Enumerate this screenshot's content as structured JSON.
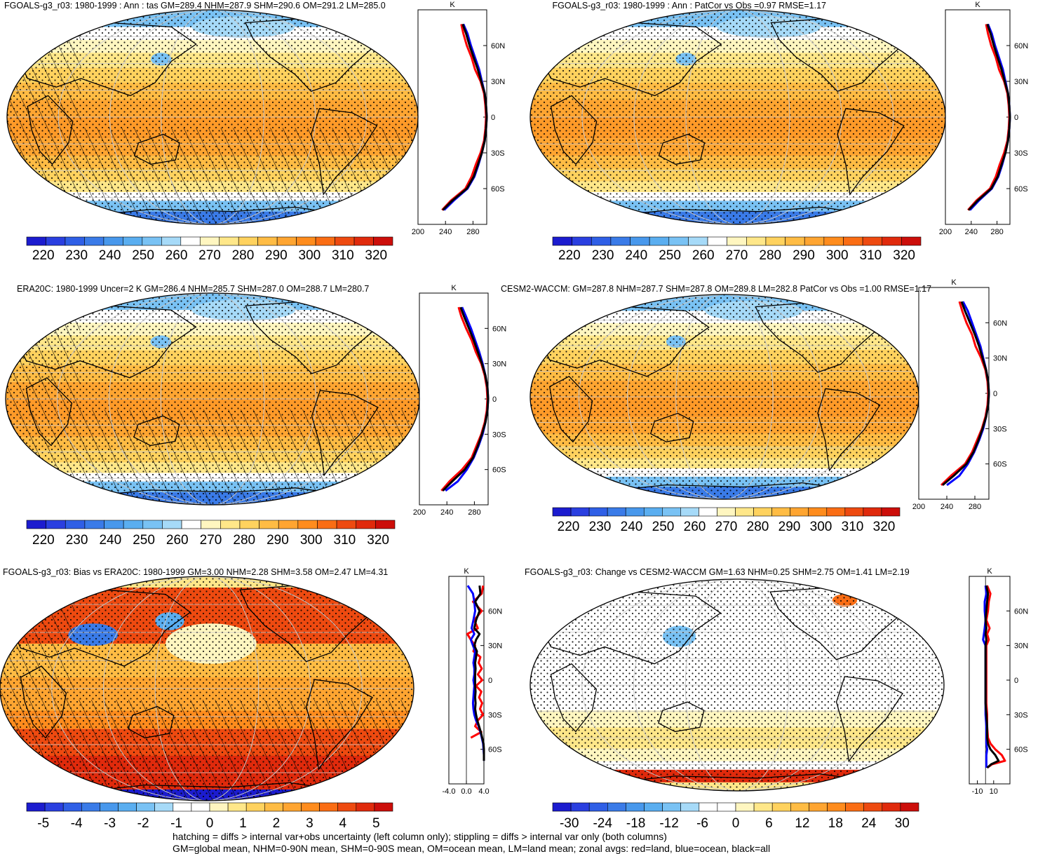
{
  "footer": {
    "line1": "hatching = diffs > internal var+obs uncertainty (left column only); stippling = diffs > internal var only (both columns)",
    "line2": "GM=global mean, NHM=0-90N mean, SHM=0-90S mean, OM=ocean mean, LM=land mean; zonal avgs: red=land, blue=ocean, black=all"
  },
  "colors": {
    "land_line": "#ff0000",
    "ocean_line": "#0000ff",
    "all_line": "#000000",
    "abs_scale": [
      "#1c1ccf",
      "#2a3fe0",
      "#2f5fe6",
      "#3a7be8",
      "#4898ec",
      "#5aaef0",
      "#79c2f4",
      "#a6daf8",
      "#ffffff",
      "#fff6c0",
      "#ffe789",
      "#ffd25e",
      "#ffbc44",
      "#ffa531",
      "#ff8c1d",
      "#fa6d14",
      "#ee4a10",
      "#e02a0c",
      "#cc0e0a"
    ],
    "diff_scale": [
      "#1c1ccf",
      "#2a3fe0",
      "#2f5fe6",
      "#3a7be8",
      "#4898ec",
      "#5aaef0",
      "#79c2f4",
      "#a6daf8",
      "#ffffff",
      "#ffffff",
      "#fff6c0",
      "#ffe789",
      "#ffd25e",
      "#ffbc44",
      "#ffa531",
      "#ff8c1d",
      "#fa6d14",
      "#ee4a10",
      "#e02a0c",
      "#cc0e0a"
    ]
  },
  "chart_data": [
    {
      "type": "heatmap",
      "title": "FGOALS-g3_r03: 1980-1999 : Ann : tas GM=289.4 NHM=287.9 SHM=290.6 OM=291.2 LM=285.0",
      "colorbar_ticks": [
        "220",
        "230",
        "240",
        "250",
        "260",
        "270",
        "280",
        "290",
        "300",
        "310",
        "320"
      ],
      "colorbar_range": [
        215,
        325
      ],
      "lat_labels": [
        "60N",
        "30N",
        "0",
        "30S",
        "60S"
      ],
      "zonal_unit": "K",
      "zonal_ticks": [
        "200",
        "240",
        "280"
      ],
      "zonal_xlim": [
        200,
        300
      ],
      "zonal_series": [
        {
          "role": "land",
          "lat": [
            78,
            70,
            60,
            50,
            40,
            30,
            20,
            10,
            0,
            -10,
            -20,
            -30,
            -40,
            -50,
            -60,
            -70,
            -78
          ],
          "values": [
            263,
            266,
            271,
            278,
            283,
            291,
            296,
            298,
            299,
            298,
            296,
            291,
            284,
            278,
            269,
            248,
            235
          ]
        },
        {
          "role": "ocean",
          "lat": [
            78,
            70,
            60,
            50,
            40,
            30,
            20,
            10,
            0,
            -10,
            -20,
            -30,
            -40,
            -50,
            -60,
            -70,
            -78
          ],
          "values": [
            266,
            272,
            277,
            283,
            289,
            293,
            297,
            299,
            300,
            299,
            297,
            293,
            288,
            282,
            272,
            252,
            238
          ]
        },
        {
          "role": "all",
          "lat": [
            78,
            70,
            60,
            50,
            40,
            30,
            20,
            10,
            0,
            -10,
            -20,
            -30,
            -40,
            -50,
            -60,
            -70,
            -78
          ],
          "values": [
            265,
            270,
            275,
            281,
            287,
            292,
            297,
            299,
            300,
            299,
            297,
            293,
            287,
            281,
            271,
            250,
            236
          ]
        }
      ]
    },
    {
      "type": "heatmap",
      "title": "FGOALS-g3_r03: 1980-1999 : Ann : PatCor vs Obs =0.97 RMSE=1.17",
      "colorbar_ticks": [
        "220",
        "230",
        "240",
        "250",
        "260",
        "270",
        "280",
        "290",
        "300",
        "310",
        "320"
      ],
      "colorbar_range": [
        215,
        325
      ],
      "lat_labels": [
        "60N",
        "30N",
        "0",
        "30S",
        "60S"
      ],
      "zonal_unit": "K",
      "zonal_ticks": [
        "200",
        "240",
        "280"
      ],
      "zonal_xlim": [
        200,
        300
      ],
      "zonal_series": [
        {
          "role": "land",
          "lat": [
            78,
            70,
            60,
            50,
            40,
            30,
            20,
            10,
            0,
            -10,
            -20,
            -30,
            -40,
            -50,
            -60,
            -70,
            -78
          ],
          "values": [
            263,
            266,
            271,
            278,
            283,
            291,
            296,
            298,
            299,
            298,
            296,
            291,
            284,
            278,
            269,
            248,
            235
          ]
        },
        {
          "role": "ocean",
          "lat": [
            78,
            70,
            60,
            50,
            40,
            30,
            20,
            10,
            0,
            -10,
            -20,
            -30,
            -40,
            -50,
            -60,
            -70,
            -78
          ],
          "values": [
            266,
            272,
            277,
            283,
            289,
            293,
            297,
            299,
            300,
            299,
            297,
            293,
            288,
            282,
            272,
            252,
            238
          ]
        },
        {
          "role": "all",
          "lat": [
            78,
            70,
            60,
            50,
            40,
            30,
            20,
            10,
            0,
            -10,
            -20,
            -30,
            -40,
            -50,
            -60,
            -70,
            -78
          ],
          "values": [
            265,
            270,
            275,
            281,
            287,
            292,
            297,
            299,
            300,
            299,
            297,
            293,
            287,
            281,
            271,
            250,
            236
          ]
        }
      ]
    },
    {
      "type": "heatmap",
      "title": "ERA20C: 1980-1999 Uncer=2 K GM=286.4 NHM=285.7 SHM=287.0 OM=288.7 LM=280.7",
      "colorbar_ticks": [
        "220",
        "230",
        "240",
        "250",
        "260",
        "270",
        "280",
        "290",
        "300",
        "310",
        "320"
      ],
      "colorbar_range": [
        215,
        325
      ],
      "lat_labels": [
        "60N",
        "30N",
        "0",
        "30S",
        "60S"
      ],
      "zonal_unit": "K",
      "zonal_ticks": [
        "200",
        "240",
        "280"
      ],
      "zonal_xlim": [
        200,
        300
      ],
      "zonal_series": [
        {
          "role": "land",
          "lat": [
            78,
            70,
            60,
            50,
            40,
            30,
            20,
            10,
            0,
            -10,
            -20,
            -30,
            -40,
            -50,
            -60,
            -70,
            -78
          ],
          "values": [
            257,
            261,
            268,
            276,
            282,
            290,
            295,
            298,
            299,
            298,
            295,
            290,
            283,
            276,
            262,
            244,
            232
          ]
        },
        {
          "role": "ocean",
          "lat": [
            78,
            70,
            60,
            50,
            40,
            30,
            20,
            10,
            0,
            -10,
            -20,
            -30,
            -40,
            -50,
            -60,
            -70,
            -78
          ],
          "values": [
            262,
            268,
            275,
            281,
            287,
            292,
            296,
            299,
            300,
            299,
            296,
            292,
            286,
            279,
            269,
            256,
            238
          ]
        },
        {
          "role": "all",
          "lat": [
            78,
            70,
            60,
            50,
            40,
            30,
            20,
            10,
            0,
            -10,
            -20,
            -30,
            -40,
            -50,
            -60,
            -70,
            -78
          ],
          "values": [
            260,
            265,
            272,
            279,
            285,
            291,
            296,
            299,
            300,
            299,
            296,
            291,
            285,
            278,
            266,
            248,
            234
          ]
        }
      ]
    },
    {
      "type": "heatmap",
      "title": "CESM2-WACCM: GM=287.8 NHM=287.7 SHM=287.8 OM=289.8 LM=282.8 PatCor vs Obs =1.00 RMSE=1.17",
      "colorbar_ticks": [
        "220",
        "230",
        "240",
        "250",
        "260",
        "270",
        "280",
        "290",
        "300",
        "310",
        "320"
      ],
      "colorbar_range": [
        215,
        325
      ],
      "lat_labels": [
        "60N",
        "30N",
        "0",
        "30S",
        "60S"
      ],
      "zonal_unit": "K",
      "zonal_ticks": [
        "200",
        "240",
        "280"
      ],
      "zonal_xlim": [
        200,
        300
      ],
      "zonal_series": [
        {
          "role": "land",
          "lat": [
            78,
            70,
            60,
            50,
            40,
            30,
            20,
            10,
            0,
            -10,
            -20,
            -30,
            -40,
            -50,
            -60,
            -70,
            -78
          ],
          "values": [
            258,
            262,
            268,
            276,
            281,
            289,
            295,
            298,
            299,
            298,
            295,
            290,
            283,
            276,
            266,
            246,
            232
          ]
        },
        {
          "role": "ocean",
          "lat": [
            78,
            70,
            60,
            50,
            40,
            30,
            20,
            10,
            0,
            -10,
            -20,
            -30,
            -40,
            -50,
            -60,
            -70,
            -78
          ],
          "values": [
            263,
            270,
            276,
            282,
            288,
            292,
            296,
            299,
            300,
            299,
            296,
            292,
            286,
            279,
            270,
            258,
            240
          ]
        },
        {
          "role": "all",
          "lat": [
            78,
            70,
            60,
            50,
            40,
            30,
            20,
            10,
            0,
            -10,
            -20,
            -30,
            -40,
            -50,
            -60,
            -70,
            -78
          ],
          "values": [
            261,
            266,
            273,
            280,
            286,
            291,
            296,
            299,
            300,
            299,
            296,
            291,
            285,
            278,
            268,
            250,
            234
          ]
        }
      ]
    },
    {
      "type": "heatmap",
      "title": "FGOALS-g3_r03: Bias vs ERA20C: 1980-1999 GM=3.00 NHM=2.28 SHM=3.58 OM=2.47 LM=4.31",
      "colorbar_ticks": [
        "-5",
        "-4",
        "-3",
        "-2",
        "-1",
        "0",
        "1",
        "2",
        "3",
        "4",
        "5"
      ],
      "colorbar_range": [
        -5.5,
        5.5
      ],
      "lat_labels": [
        "60N",
        "30N",
        "0",
        "30S",
        "60S"
      ],
      "zonal_unit": "K",
      "zonal_ticks": [
        "-4.0",
        "0.0",
        "4.0"
      ],
      "zonal_xlim": [
        -4,
        4
      ],
      "zonal_series": [
        {
          "role": "land",
          "lat": [
            82,
            75,
            68,
            60,
            52,
            45,
            40,
            35,
            30,
            25,
            20,
            15,
            10,
            5,
            0,
            -5,
            -10,
            -15,
            -20,
            -25,
            -30,
            -35,
            -40,
            -45,
            -50
          ],
          "values": [
            3.8,
            3.5,
            1.5,
            3.5,
            1.8,
            2.6,
            0.2,
            1.0,
            2.0,
            1.6,
            3.2,
            2.8,
            3.5,
            2.6,
            3.6,
            2.2,
            3.4,
            2.9,
            3.6,
            3.1,
            3.8,
            2.6,
            2.0,
            3.4,
            1.0
          ]
        },
        {
          "role": "ocean",
          "lat": [
            82,
            75,
            68,
            60,
            52,
            45,
            40,
            35,
            30,
            25,
            20,
            15,
            10,
            5,
            0,
            -5,
            -10,
            -15,
            -20,
            -25,
            -30,
            -35,
            -40,
            -45,
            -50,
            -55,
            -60,
            -65,
            -70
          ],
          "values": [
            0.3,
            1.5,
            1.8,
            2.0,
            1.6,
            1.2,
            1.8,
            1.0,
            1.5,
            2.0,
            1.8,
            1.6,
            1.8,
            1.8,
            1.6,
            1.8,
            1.7,
            1.6,
            1.5,
            1.6,
            1.8,
            2.2,
            2.8,
            3.2,
            3.5,
            3.8,
            3.9,
            4.0,
            4.0
          ]
        },
        {
          "role": "all",
          "lat": [
            82,
            75,
            68,
            60,
            52,
            45,
            40,
            35,
            30,
            25,
            20,
            15,
            10,
            5,
            0,
            -5,
            -10,
            -15,
            -20,
            -25,
            -30,
            -35,
            -40,
            -45,
            -50,
            -55,
            -60,
            -65,
            -70
          ],
          "values": [
            3.0,
            3.2,
            2.0,
            3.0,
            2.2,
            1.8,
            3.0,
            2.2,
            1.8,
            2.4,
            2.2,
            2.0,
            2.1,
            2.0,
            2.0,
            2.0,
            2.1,
            2.0,
            2.1,
            2.0,
            2.2,
            2.5,
            2.9,
            3.3,
            3.6,
            3.9,
            4.0,
            4.0,
            4.0
          ]
        }
      ]
    },
    {
      "type": "heatmap",
      "title": "FGOALS-g3_r03: Change vs CESM2-WACCM GM=1.63 NHM=0.25 SHM=2.75 OM=1.41 LM=2.19",
      "colorbar_ticks": [
        "-30",
        "-24",
        "-18",
        "-12",
        "-6",
        "0",
        "6",
        "12",
        "18",
        "24",
        "30"
      ],
      "colorbar_range": [
        -33,
        33
      ],
      "lat_labels": [
        "60N",
        "30N",
        "0",
        "30S",
        "60S"
      ],
      "zonal_unit": "K",
      "zonal_ticks": [
        "-10",
        "10"
      ],
      "zonal_xlim": [
        -20,
        30
      ],
      "zonal_series": [
        {
          "role": "land",
          "lat": [
            82,
            75,
            68,
            60,
            52,
            45,
            40,
            35,
            30,
            20,
            10,
            0,
            -10,
            -20,
            -30,
            -40,
            -50,
            -55,
            -60,
            -65,
            -70,
            -73,
            -76
          ],
          "values": [
            2,
            6,
            4,
            3,
            1,
            5,
            2,
            4,
            1,
            1,
            1,
            1,
            1,
            1,
            2,
            2,
            3,
            6,
            12,
            20,
            24,
            8,
            2
          ]
        },
        {
          "role": "ocean",
          "lat": [
            82,
            75,
            68,
            60,
            52,
            45,
            40,
            35,
            30,
            20,
            10,
            0,
            -10,
            -20,
            -30,
            -40,
            -50,
            -55,
            -60,
            -65,
            -70,
            -73,
            -76
          ],
          "values": [
            0,
            1,
            -1,
            -1,
            0,
            -1,
            -2,
            -3,
            0,
            0,
            0,
            0,
            0,
            0,
            0,
            1,
            1,
            1,
            2,
            1,
            1,
            1,
            1
          ]
        },
        {
          "role": "all",
          "lat": [
            82,
            75,
            68,
            60,
            52,
            45,
            40,
            35,
            30,
            20,
            10,
            0,
            -10,
            -20,
            -30,
            -40,
            -50,
            -55,
            -60,
            -65,
            -70,
            -73,
            -76
          ],
          "values": [
            1,
            3,
            2,
            1,
            0,
            1,
            0,
            1,
            0,
            0,
            0,
            0,
            0,
            0,
            1,
            2,
            2,
            3,
            6,
            12,
            16,
            7,
            2
          ]
        }
      ]
    }
  ]
}
